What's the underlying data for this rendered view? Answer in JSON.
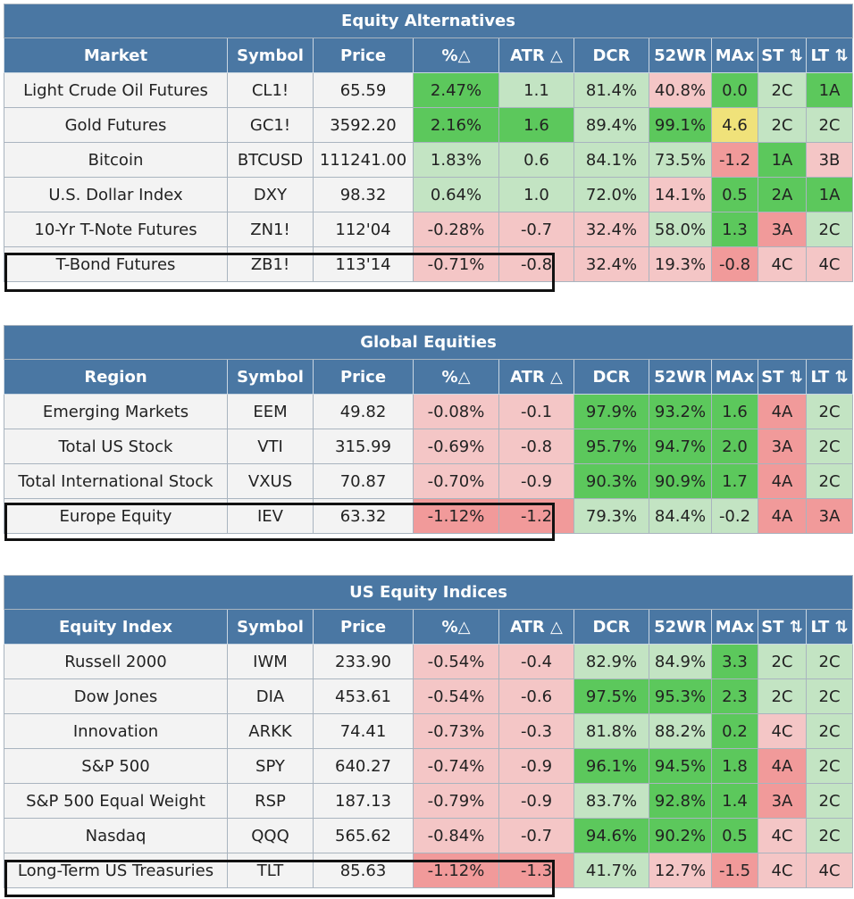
{
  "headers": [
    "Symbol",
    "Price",
    "%△",
    "ATR △",
    "DCR",
    "52WR",
    "MAx",
    "ST ⇅",
    "LT ⇅"
  ],
  "sections": [
    {
      "title": "Equity Alternatives",
      "first_header": "Market",
      "rows": [
        {
          "name": "Light Crude Oil Futures",
          "symbol": "CL1!",
          "price": "65.59",
          "pct": "2.47%",
          "atr": "1.1",
          "dcr": "81.4%",
          "wr52": "40.8%",
          "max": "0.0",
          "st": "2C",
          "lt": "1A",
          "colors": [
            "gD",
            "gL",
            "gL",
            "rL",
            "gD",
            "gL",
            "gD"
          ]
        },
        {
          "name": "Gold Futures",
          "symbol": "GC1!",
          "price": "3592.20",
          "pct": "2.16%",
          "atr": "1.6",
          "dcr": "89.4%",
          "wr52": "99.1%",
          "max": "4.6",
          "st": "2C",
          "lt": "2C",
          "colors": [
            "gD",
            "gD",
            "gL",
            "gD",
            "yel",
            "gL",
            "gL"
          ]
        },
        {
          "name": "Bitcoin",
          "symbol": "BTCUSD",
          "price": "111241.00",
          "pct": "1.83%",
          "atr": "0.6",
          "dcr": "84.1%",
          "wr52": "73.5%",
          "max": "-1.2",
          "st": "1A",
          "lt": "3B",
          "colors": [
            "gL",
            "gL",
            "gL",
            "gL",
            "rD",
            "gD",
            "rL"
          ]
        },
        {
          "name": "U.S. Dollar Index",
          "symbol": "DXY",
          "price": "98.32",
          "pct": "0.64%",
          "atr": "1.0",
          "dcr": "72.0%",
          "wr52": "14.1%",
          "max": "0.5",
          "st": "2A",
          "lt": "1A",
          "colors": [
            "gL",
            "gL",
            "gL",
            "rL",
            "gD",
            "gD",
            "gD"
          ]
        },
        {
          "name": "10-Yr T-Note Futures",
          "symbol": "ZN1!",
          "price": "112'04",
          "pct": "-0.28%",
          "atr": "-0.7",
          "dcr": "32.4%",
          "wr52": "58.0%",
          "max": "1.3",
          "st": "3A",
          "lt": "2C",
          "colors": [
            "rL",
            "rL",
            "rL",
            "gL",
            "gD",
            "rD",
            "gL"
          ]
        },
        {
          "name": "T-Bond Futures",
          "symbol": "ZB1!",
          "price": "113'14",
          "pct": "-0.71%",
          "atr": "-0.8",
          "dcr": "32.4%",
          "wr52": "19.3%",
          "max": "-0.8",
          "st": "4C",
          "lt": "4C",
          "colors": [
            "rL",
            "rL",
            "rL",
            "rL",
            "rD",
            "rL",
            "rL"
          ]
        }
      ]
    },
    {
      "title": "Global Equities",
      "first_header": "Region",
      "rows": [
        {
          "name": "Emerging Markets",
          "symbol": "EEM",
          "price": "49.82",
          "pct": "-0.08%",
          "atr": "-0.1",
          "dcr": "97.9%",
          "wr52": "93.2%",
          "max": "1.6",
          "st": "4A",
          "lt": "2C",
          "colors": [
            "rL",
            "rL",
            "gD",
            "gD",
            "gD",
            "rD",
            "gL"
          ]
        },
        {
          "name": "Total US Stock",
          "symbol": "VTI",
          "price": "315.99",
          "pct": "-0.69%",
          "atr": "-0.8",
          "dcr": "95.7%",
          "wr52": "94.7%",
          "max": "2.0",
          "st": "3A",
          "lt": "2C",
          "colors": [
            "rL",
            "rL",
            "gD",
            "gD",
            "gD",
            "rD",
            "gL"
          ]
        },
        {
          "name": "Total International Stock",
          "symbol": "VXUS",
          "price": "70.87",
          "pct": "-0.70%",
          "atr": "-0.9",
          "dcr": "90.3%",
          "wr52": "90.9%",
          "max": "1.7",
          "st": "4A",
          "lt": "2C",
          "colors": [
            "rL",
            "rL",
            "gD",
            "gD",
            "gD",
            "rD",
            "gL"
          ]
        },
        {
          "name": "Europe Equity",
          "symbol": "IEV",
          "price": "63.32",
          "pct": "-1.12%",
          "atr": "-1.2",
          "dcr": "79.3%",
          "wr52": "84.4%",
          "max": "-0.2",
          "st": "4A",
          "lt": "3A",
          "colors": [
            "rD",
            "rD",
            "gL",
            "gL",
            "gL",
            "rD",
            "rD"
          ]
        }
      ]
    },
    {
      "title": "US Equity Indices",
      "first_header": "Equity Index",
      "rows": [
        {
          "name": "Russell 2000",
          "symbol": "IWM",
          "price": "233.90",
          "pct": "-0.54%",
          "atr": "-0.4",
          "dcr": "82.9%",
          "wr52": "84.9%",
          "max": "3.3",
          "st": "2C",
          "lt": "2C",
          "colors": [
            "rL",
            "rL",
            "gL",
            "gL",
            "gD",
            "gL",
            "gL"
          ]
        },
        {
          "name": "Dow Jones",
          "symbol": "DIA",
          "price": "453.61",
          "pct": "-0.54%",
          "atr": "-0.6",
          "dcr": "97.5%",
          "wr52": "95.3%",
          "max": "2.3",
          "st": "2C",
          "lt": "2C",
          "colors": [
            "rL",
            "rL",
            "gD",
            "gD",
            "gD",
            "gL",
            "gL"
          ]
        },
        {
          "name": "Innovation",
          "symbol": "ARKK",
          "price": "74.41",
          "pct": "-0.73%",
          "atr": "-0.3",
          "dcr": "81.8%",
          "wr52": "88.2%",
          "max": "0.2",
          "st": "4C",
          "lt": "2C",
          "colors": [
            "rL",
            "rL",
            "gL",
            "gL",
            "gD",
            "rL",
            "gL"
          ]
        },
        {
          "name": "S&P 500",
          "symbol": "SPY",
          "price": "640.27",
          "pct": "-0.74%",
          "atr": "-0.9",
          "dcr": "96.1%",
          "wr52": "94.5%",
          "max": "1.8",
          "st": "4A",
          "lt": "2C",
          "colors": [
            "rL",
            "rL",
            "gD",
            "gD",
            "gD",
            "rD",
            "gL"
          ]
        },
        {
          "name": "S&P 500 Equal Weight",
          "symbol": "RSP",
          "price": "187.13",
          "pct": "-0.79%",
          "atr": "-0.9",
          "dcr": "83.7%",
          "wr52": "92.8%",
          "max": "1.4",
          "st": "3A",
          "lt": "2C",
          "colors": [
            "rL",
            "rL",
            "gL",
            "gD",
            "gD",
            "rD",
            "gL"
          ]
        },
        {
          "name": "Nasdaq",
          "symbol": "QQQ",
          "price": "565.62",
          "pct": "-0.84%",
          "atr": "-0.7",
          "dcr": "94.6%",
          "wr52": "90.2%",
          "max": "0.5",
          "st": "4C",
          "lt": "2C",
          "colors": [
            "rL",
            "rL",
            "gD",
            "gD",
            "gD",
            "rL",
            "gL"
          ]
        },
        {
          "name": "Long-Term US Treasuries",
          "symbol": "TLT",
          "price": "85.63",
          "pct": "-1.12%",
          "atr": "-1.3",
          "dcr": "41.7%",
          "wr52": "12.7%",
          "max": "-1.5",
          "st": "4C",
          "lt": "4C",
          "colors": [
            "rD",
            "rD",
            "gL",
            "rL",
            "rD",
            "rL",
            "rL"
          ]
        }
      ]
    }
  ]
}
